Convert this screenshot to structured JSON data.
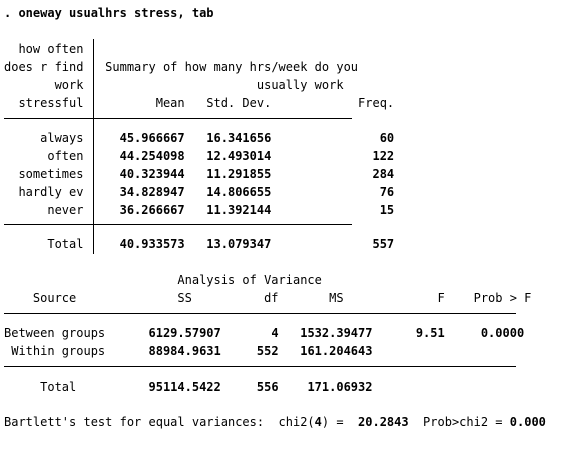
{
  "command": ". oneway usualhrs stress, tab",
  "summary": {
    "row_var_label_lines": [
      "how often",
      "does r find",
      "work",
      "stressful"
    ],
    "header_title_lines": [
      "Summary of how many hrs/week do you",
      "usually work"
    ],
    "columns": [
      "Mean",
      "Std. Dev.",
      "Freq."
    ],
    "rows": [
      {
        "label": "always",
        "mean": "45.966667",
        "sd": "16.341656",
        "freq": "60"
      },
      {
        "label": "often",
        "mean": "44.254098",
        "sd": "12.493014",
        "freq": "122"
      },
      {
        "label": "sometimes",
        "mean": "40.323944",
        "sd": "11.291855",
        "freq": "284"
      },
      {
        "label": "hardly ev",
        "mean": "34.828947",
        "sd": "14.806655",
        "freq": "76"
      },
      {
        "label": "never",
        "mean": "36.266667",
        "sd": "11.392144",
        "freq": "15"
      }
    ],
    "total": {
      "label": "Total",
      "mean": "40.933573",
      "sd": "13.079347",
      "freq": "557"
    }
  },
  "anova": {
    "title": "Analysis of Variance",
    "headers": {
      "source": "Source",
      "ss": "SS",
      "df": "df",
      "ms": "MS",
      "f": "F",
      "p": "Prob > F"
    },
    "rows": [
      {
        "source": "Between groups",
        "ss": "6129.57907",
        "df": "4",
        "ms": "1532.39477",
        "f": "9.51",
        "p": "0.0000"
      },
      {
        "source": "Within groups",
        "ss": "88984.9631",
        "df": "552",
        "ms": "161.204643",
        "f": "",
        "p": ""
      }
    ],
    "total": {
      "source": "Total",
      "ss": "95114.5422",
      "df": "556",
      "ms": "171.06932"
    }
  },
  "bartlett": {
    "prefix": "Bartlett's test for equal variances:  chi2(",
    "df": "4",
    "mid": ") =  ",
    "chi2": "20.2843",
    "pmid": "  Prob>chi2 = ",
    "p": "0.000"
  }
}
